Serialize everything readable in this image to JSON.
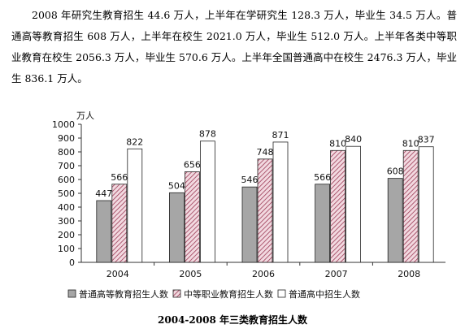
{
  "paragraph": "2008 年研究生教育招生 44.6 万人，上半年在学研究生 128.3 万人，毕业生 34.5 万人。普通高等教育招生 608 万人，上半年在校生 2021.0 万人，毕业生 512.0 万人。上半年各类中等职业教育在校生 2056.3 万人，毕业生 570.6 万人。上半年全国普通高中在校生 2476.3 万人，毕业生 836.1 万人。",
  "chart_data": {
    "type": "bar",
    "title": "2004-2008 年三类教育招生人数",
    "ylabel": "万人",
    "xlabel": "",
    "ylim": [
      0,
      1000
    ],
    "yticks": [
      "0",
      "100",
      "200",
      "300",
      "400",
      "500",
      "600",
      "700",
      "800",
      "900",
      "1000"
    ],
    "categories": [
      "2004",
      "2005",
      "2006",
      "2007",
      "2008"
    ],
    "series": [
      {
        "name": "普通高等教育招生人数",
        "values": [
          447,
          504,
          546,
          566,
          608
        ],
        "labels": [
          "447",
          "504",
          "546",
          "566",
          "608"
        ],
        "color": "#a6a6a6",
        "pattern": "solid"
      },
      {
        "name": "中等职业教育招生人数",
        "values": [
          566,
          656,
          748,
          810,
          810
        ],
        "labels": [
          "566",
          "656",
          "748",
          "810",
          "810"
        ],
        "color": "#9b3a55",
        "pattern": "hatch"
      },
      {
        "name": "普通高中招生人数",
        "values": [
          822,
          878,
          871,
          840,
          837
        ],
        "labels": [
          "822",
          "878",
          "871",
          "840",
          "837"
        ],
        "color": "#ffffff",
        "pattern": "white"
      }
    ],
    "grid": false,
    "legend": "bottom"
  }
}
